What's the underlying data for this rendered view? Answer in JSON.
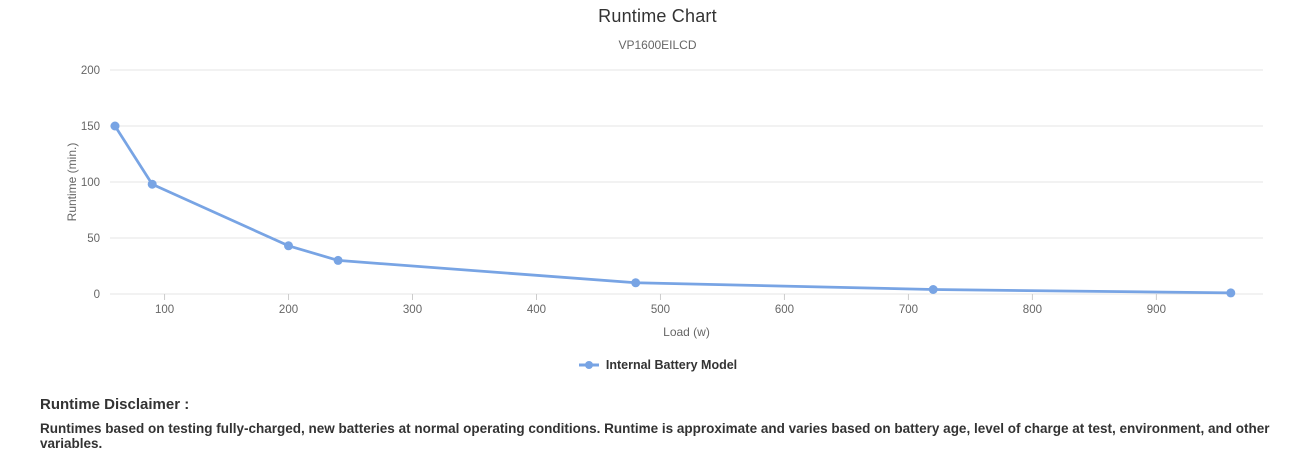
{
  "header": {
    "title": "Runtime Chart",
    "subtitle": "VP1600EILCD"
  },
  "legend": {
    "items": [
      {
        "label": "Internal Battery Model",
        "color": "#78a4e4"
      }
    ]
  },
  "disclaimer": {
    "heading": "Runtime Disclaimer :",
    "body": "Runtimes based on testing fully-charged, new batteries at normal operating conditions. Runtime is approximate and varies based on battery age, level of charge at test, environment, and other variables."
  },
  "chart_data": {
    "type": "line",
    "title": "Runtime Chart",
    "subtitle": "VP1600EILCD",
    "xlabel": "Load (w)",
    "ylabel": "Runtime (min.)",
    "series": [
      {
        "name": "Internal Battery Model",
        "color": "#78a4e4",
        "points": [
          {
            "x": 60,
            "y": 150
          },
          {
            "x": 90,
            "y": 98
          },
          {
            "x": 200,
            "y": 43
          },
          {
            "x": 240,
            "y": 30
          },
          {
            "x": 480,
            "y": 10
          },
          {
            "x": 720,
            "y": 4
          },
          {
            "x": 960,
            "y": 1
          }
        ]
      }
    ],
    "x_ticks": [
      100,
      200,
      300,
      400,
      500,
      600,
      700,
      800,
      900
    ],
    "y_ticks": [
      0,
      50,
      100,
      150,
      200
    ],
    "xlim": [
      56,
      986
    ],
    "ylim": [
      0,
      200
    ],
    "grid": "horizontal",
    "legend_position": "bottom",
    "colors": {
      "series": "#78a4e4",
      "gridline": "#e6e6e6",
      "tick_mark": "#cccccc",
      "tick_label": "#666666",
      "axis_title": "#666666",
      "title": "#333333",
      "subtitle": "#666666"
    }
  }
}
